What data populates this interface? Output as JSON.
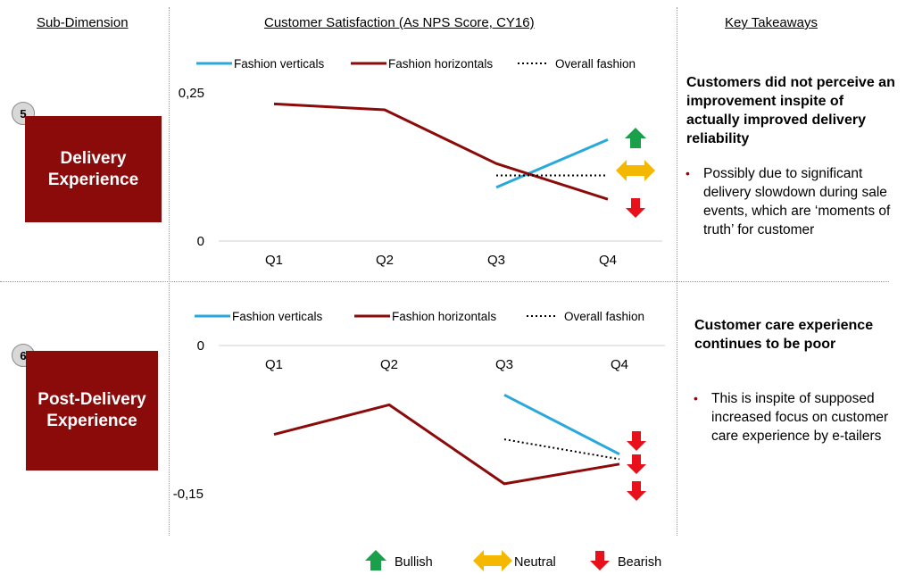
{
  "headers": {
    "sub_dimension": "Sub-Dimension",
    "satisfaction": "Customer Satisfaction (As NPS Score, CY16)",
    "takeaways": "Key Takeaways"
  },
  "rows": [
    {
      "number": "5",
      "dimension_line1": "Delivery",
      "dimension_line2": "Experience",
      "takeaway_title": "Customers did not perceive an improvement inspite of actually improved delivery reliability",
      "takeaway_bullet": "Possibly due to significant delivery slowdown during sale events, which are ‘moments of truth’ for customer",
      "signals": [
        {
          "series": "Fashion verticals",
          "icon": "up-arrow-icon",
          "meaning": "Bullish"
        },
        {
          "series": "Overall fashion",
          "icon": "double-arrow-icon",
          "meaning": "Neutral"
        },
        {
          "series": "Fashion horizontals",
          "icon": "down-arrow-icon",
          "meaning": "Bearish"
        }
      ]
    },
    {
      "number": "6",
      "dimension_line1": "Post-Delivery",
      "dimension_line2": "Experience",
      "takeaway_title": "Customer care experience continues to be poor",
      "takeaway_bullet": "This is inspite of supposed increased focus on customer care experience by e-tailers",
      "signals": [
        {
          "series": "Fashion verticals",
          "icon": "down-arrow-icon",
          "meaning": "Bearish"
        },
        {
          "series": "Overall fashion",
          "icon": "down-arrow-icon",
          "meaning": "Bearish"
        },
        {
          "series": "Fashion horizontals",
          "icon": "down-arrow-icon",
          "meaning": "Bearish"
        }
      ]
    }
  ],
  "key": {
    "bullish": "Bullish",
    "neutral": "Neutral",
    "bearish": "Bearish"
  },
  "colors": {
    "fashion_verticals": "#29a8dc",
    "fashion_horizontals": "#8b0a0a",
    "overall_fashion": "#000000",
    "bullish": "#1aa04a",
    "neutral": "#f5b800",
    "bearish": "#e8101a",
    "dimension_box": "#8b0a0a"
  },
  "chart_data": [
    {
      "type": "line",
      "title": "Delivery Experience",
      "categories": [
        "Q1",
        "Q2",
        "Q3",
        "Q4"
      ],
      "ylim": [
        0,
        0.25
      ],
      "ytick_labels": [
        "0,25",
        "0"
      ],
      "grid": false,
      "legend_position": "top",
      "series": [
        {
          "name": "Fashion verticals",
          "values": [
            null,
            null,
            0.09,
            0.17
          ]
        },
        {
          "name": "Fashion horizontals",
          "values": [
            0.23,
            0.22,
            0.13,
            0.07
          ]
        },
        {
          "name": "Overall fashion",
          "values": [
            null,
            null,
            0.11,
            0.11
          ]
        }
      ]
    },
    {
      "type": "line",
      "title": "Post-Delivery Experience",
      "categories": [
        "Q1",
        "Q2",
        "Q3",
        "Q4"
      ],
      "ylim": [
        -0.15,
        0
      ],
      "ytick_labels": [
        "0",
        "-0,15"
      ],
      "grid": false,
      "legend_position": "top",
      "series": [
        {
          "name": "Fashion verticals",
          "values": [
            null,
            null,
            -0.05,
            -0.11
          ]
        },
        {
          "name": "Fashion horizontals",
          "values": [
            -0.09,
            -0.06,
            -0.14,
            -0.12
          ]
        },
        {
          "name": "Overall fashion",
          "values": [
            null,
            null,
            -0.095,
            -0.115
          ]
        }
      ]
    }
  ]
}
